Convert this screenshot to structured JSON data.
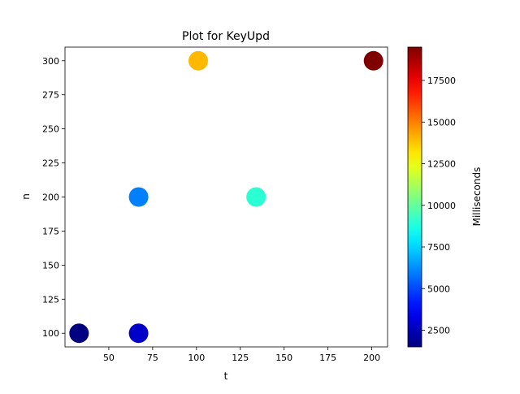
{
  "chart_data": {
    "type": "scatter",
    "title": "Plot for KeyUpd",
    "xlabel": "t",
    "ylabel": "n",
    "xlim": [
      25,
      209
    ],
    "ylim": [
      90,
      310
    ],
    "xticks": [
      50,
      75,
      100,
      125,
      150,
      175,
      200
    ],
    "yticks": [
      100,
      125,
      150,
      175,
      200,
      225,
      250,
      275,
      300
    ],
    "grid": false,
    "points": [
      {
        "x": 33,
        "y": 100,
        "value": 1500
      },
      {
        "x": 67,
        "y": 100,
        "value": 2800
      },
      {
        "x": 67,
        "y": 200,
        "value": 6000
      },
      {
        "x": 134,
        "y": 200,
        "value": 9000
      },
      {
        "x": 101,
        "y": 300,
        "value": 14000
      },
      {
        "x": 201,
        "y": 300,
        "value": 19500
      }
    ],
    "colorbar": {
      "label": "Milliseconds",
      "colormap": "jet",
      "range": [
        1500,
        19500
      ],
      "ticks": [
        2500,
        5000,
        7500,
        10000,
        12500,
        15000,
        17500
      ]
    }
  }
}
